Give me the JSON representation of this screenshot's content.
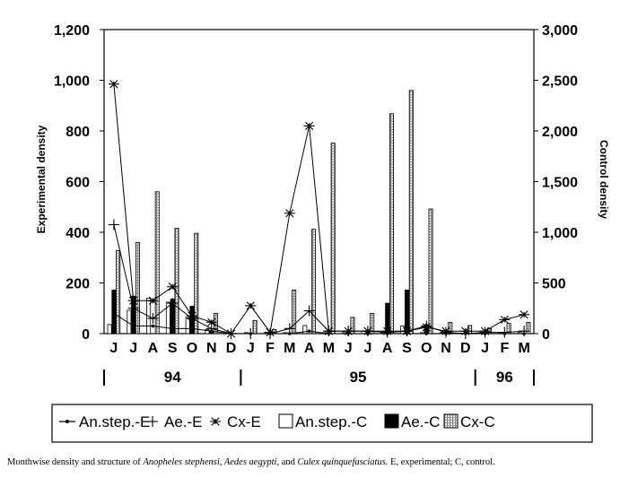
{
  "chart_data": {
    "type": "bar",
    "months": [
      "J",
      "J",
      "A",
      "S",
      "O",
      "N",
      "D",
      "J",
      "F",
      "M",
      "A",
      "M",
      "J",
      "J",
      "A",
      "S",
      "O",
      "N",
      "D",
      "J",
      "F",
      "M"
    ],
    "years": [
      {
        "label": "94",
        "start": 0,
        "end": 6
      },
      {
        "label": "95",
        "start": 7,
        "end": 18
      },
      {
        "label": "96",
        "start": 19,
        "end": 21
      }
    ],
    "ylabel": "Experimental density",
    "y2label": "Control density",
    "ylim": [
      0,
      1200
    ],
    "y2lim": [
      0,
      3000
    ],
    "yticks": [
      0,
      200,
      400,
      600,
      800,
      1000,
      1200
    ],
    "yticklabels": [
      "0",
      "200",
      "400",
      "600",
      "800",
      "1,000",
      "1,200"
    ],
    "y2ticks": [
      0,
      500,
      1000,
      1500,
      2000,
      2500,
      3000
    ],
    "y2ticklabels": [
      "0",
      "500",
      "1,000",
      "1,500",
      "2,000",
      "2,500",
      "3,000"
    ],
    "bar_series": [
      {
        "name": "An.step.-C",
        "axis": "control",
        "fill": "#ffffff",
        "values": [
          90,
          230,
          350,
          310,
          160,
          40,
          0,
          10,
          10,
          10,
          80,
          10,
          10,
          25,
          10,
          75,
          10,
          10,
          5,
          5,
          5,
          10
        ]
      },
      {
        "name": "Ae.-C",
        "axis": "control",
        "fill": "#000000",
        "values": [
          430,
          370,
          0,
          340,
          270,
          20,
          0,
          0,
          0,
          0,
          0,
          0,
          0,
          0,
          300,
          430,
          90,
          20,
          0,
          0,
          0,
          0
        ]
      },
      {
        "name": "Cx-C",
        "axis": "control",
        "fill": "hatch",
        "values": [
          820,
          900,
          1400,
          1040,
          990,
          200,
          0,
          130,
          40,
          430,
          1030,
          1880,
          160,
          200,
          2170,
          2400,
          1230,
          110,
          80,
          50,
          100,
          110
        ]
      }
    ],
    "line_series": [
      {
        "name": "An.step.-E",
        "marker": "dot",
        "values": [
          80,
          30,
          30,
          20,
          20,
          10,
          0,
          0,
          0,
          0,
          10,
          0,
          0,
          0,
          0,
          0,
          0,
          0,
          0,
          0,
          0,
          0
        ]
      },
      {
        "name": "Ae.-E",
        "marker": "plus",
        "values": [
          430,
          100,
          60,
          120,
          60,
          20,
          0,
          0,
          0,
          20,
          90,
          10,
          10,
          10,
          5,
          10,
          30,
          5,
          0,
          5,
          5,
          10
        ]
      },
      {
        "name": "Cx-E",
        "marker": "star",
        "values": [
          985,
          130,
          130,
          185,
          70,
          45,
          0,
          110,
          5,
          475,
          820,
          10,
          10,
          10,
          10,
          10,
          25,
          10,
          10,
          10,
          55,
          75
        ]
      }
    ],
    "legend": [
      "An.step.-E",
      "Ae.-E",
      "Cx-E",
      "An.step.-C",
      "Ae.-C",
      "Cx-C"
    ],
    "legend_position": "bottom",
    "grid": false
  },
  "caption": {
    "parts": [
      {
        "text": "Monthwise density and structure of ",
        "italic": false
      },
      {
        "text": "Anopheles stephensi, Aedes aegypti,",
        "italic": true
      },
      {
        "text": " and ",
        "italic": false
      },
      {
        "text": "Culex quinquefasciatus.",
        "italic": true
      },
      {
        "text": " E, experimental; C, control.",
        "italic": false
      }
    ]
  }
}
